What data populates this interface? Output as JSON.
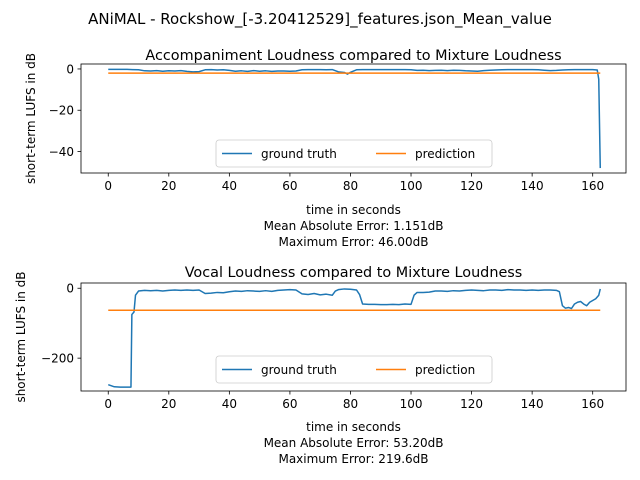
{
  "suptitle": "ANiMAL - Rockshow_[-3.20412529]_features.json_Mean_value",
  "colors": {
    "ground_truth": "#1f77b4",
    "prediction": "#ff7f0e"
  },
  "chart_data": [
    {
      "type": "line",
      "title": "Accompaniment Loudness compared to Mixture Loudness",
      "xlabel": "time in seconds",
      "ylabel": "short-term LUFS in dB",
      "xlim": [
        -9,
        171
      ],
      "ylim": [
        -50.4,
        2.4
      ],
      "xticks": [
        0,
        20,
        40,
        60,
        80,
        100,
        120,
        140,
        160
      ],
      "yticks": [
        0,
        -20,
        -40
      ],
      "metrics": [
        "Mean Absolute Error: 1.151dB",
        "Maximum Error: 46.00dB"
      ],
      "legend": {
        "position": "lower-center",
        "ncol": 2
      },
      "series": [
        {
          "name": "ground truth",
          "color": "#1f77b4",
          "points": [
            [
              0,
              -0.2
            ],
            [
              2,
              -0.2
            ],
            [
              4,
              -0.2
            ],
            [
              6,
              -0.2
            ],
            [
              8,
              -0.3
            ],
            [
              10,
              -0.4
            ],
            [
              12,
              -0.9
            ],
            [
              14,
              -1.0
            ],
            [
              16,
              -0.8
            ],
            [
              18,
              -1.1
            ],
            [
              20,
              -0.9
            ],
            [
              22,
              -1.0
            ],
            [
              24,
              -0.8
            ],
            [
              26,
              -1.2
            ],
            [
              28,
              -1.4
            ],
            [
              30,
              -1.3
            ],
            [
              32,
              -0.4
            ],
            [
              34,
              -0.3
            ],
            [
              36,
              -0.5
            ],
            [
              38,
              -0.4
            ],
            [
              40,
              -0.7
            ],
            [
              42,
              -1.1
            ],
            [
              44,
              -0.9
            ],
            [
              46,
              -1.2
            ],
            [
              48,
              -0.8
            ],
            [
              50,
              -1.1
            ],
            [
              52,
              -0.9
            ],
            [
              54,
              -1.2
            ],
            [
              56,
              -1.0
            ],
            [
              58,
              -1.0
            ],
            [
              60,
              -1.1
            ],
            [
              62,
              -1.0
            ],
            [
              64,
              -0.4
            ],
            [
              66,
              -0.3
            ],
            [
              68,
              -0.3
            ],
            [
              70,
              -0.3
            ],
            [
              72,
              -0.4
            ],
            [
              74,
              -0.3
            ],
            [
              76,
              -1.4
            ],
            [
              78,
              -1.7
            ],
            [
              79,
              -2.5
            ],
            [
              80,
              -1.6
            ],
            [
              82,
              -0.4
            ],
            [
              84,
              -0.3
            ],
            [
              86,
              -0.3
            ],
            [
              88,
              -0.3
            ],
            [
              90,
              -0.3
            ],
            [
              92,
              -0.3
            ],
            [
              94,
              -0.3
            ],
            [
              96,
              -0.3
            ],
            [
              98,
              -0.3
            ],
            [
              100,
              -0.4
            ],
            [
              102,
              -0.7
            ],
            [
              104,
              -0.6
            ],
            [
              106,
              -0.8
            ],
            [
              108,
              -0.7
            ],
            [
              110,
              -0.6
            ],
            [
              112,
              -0.8
            ],
            [
              114,
              -0.6
            ],
            [
              116,
              -0.7
            ],
            [
              118,
              -0.9
            ],
            [
              120,
              -1.0
            ],
            [
              122,
              -1.1
            ],
            [
              124,
              -0.8
            ],
            [
              126,
              -0.6
            ],
            [
              128,
              -0.5
            ],
            [
              130,
              -0.4
            ],
            [
              132,
              -0.3
            ],
            [
              134,
              -0.3
            ],
            [
              136,
              -0.3
            ],
            [
              138,
              -0.3
            ],
            [
              140,
              -0.3
            ],
            [
              142,
              -0.4
            ],
            [
              144,
              -0.6
            ],
            [
              146,
              -0.8
            ],
            [
              148,
              -0.7
            ],
            [
              150,
              -0.5
            ],
            [
              152,
              -0.4
            ],
            [
              154,
              -0.3
            ],
            [
              156,
              -0.3
            ],
            [
              158,
              -0.3
            ],
            [
              160,
              -0.3
            ],
            [
              161.5,
              -0.5
            ],
            [
              162,
              -5.0
            ],
            [
              162.5,
              -48.0
            ]
          ]
        },
        {
          "name": "prediction",
          "color": "#ff7f0e",
          "points": [
            [
              0,
              -2.0
            ],
            [
              162.5,
              -2.0
            ]
          ]
        }
      ]
    },
    {
      "type": "line",
      "title": "Vocal Loudness compared to Mixture Loudness",
      "xlabel": "time in seconds",
      "ylabel": "short-term LUFS in dB",
      "xlim": [
        -9,
        171
      ],
      "ylim": [
        -294,
        15
      ],
      "xticks": [
        0,
        20,
        40,
        60,
        80,
        100,
        120,
        140,
        160
      ],
      "yticks": [
        0,
        -200
      ],
      "metrics": [
        "Mean Absolute Error: 53.20dB",
        "Maximum Error: 219.6dB"
      ],
      "legend": {
        "position": "lower-center",
        "ncol": 2
      },
      "series": [
        {
          "name": "ground truth",
          "color": "#1f77b4",
          "points": [
            [
              0,
              -276
            ],
            [
              2,
              -282
            ],
            [
              4,
              -283
            ],
            [
              6,
              -283
            ],
            [
              7.5,
              -283
            ],
            [
              7.8,
              -75
            ],
            [
              8.5,
              -68
            ],
            [
              9,
              -20
            ],
            [
              10,
              -8
            ],
            [
              12,
              -6
            ],
            [
              14,
              -7
            ],
            [
              16,
              -6
            ],
            [
              18,
              -8
            ],
            [
              20,
              -6
            ],
            [
              22,
              -5
            ],
            [
              24,
              -6
            ],
            [
              26,
              -5
            ],
            [
              28,
              -6
            ],
            [
              30,
              -5
            ],
            [
              32,
              -15
            ],
            [
              34,
              -14
            ],
            [
              36,
              -12
            ],
            [
              38,
              -13
            ],
            [
              40,
              -10
            ],
            [
              42,
              -8
            ],
            [
              44,
              -9
            ],
            [
              46,
              -7
            ],
            [
              48,
              -8
            ],
            [
              50,
              -9
            ],
            [
              52,
              -7
            ],
            [
              54,
              -9
            ],
            [
              56,
              -6
            ],
            [
              58,
              -5
            ],
            [
              60,
              -4
            ],
            [
              62,
              -5
            ],
            [
              64,
              -16
            ],
            [
              66,
              -18
            ],
            [
              68,
              -15
            ],
            [
              70,
              -19
            ],
            [
              72,
              -17
            ],
            [
              74,
              -20
            ],
            [
              75,
              -8
            ],
            [
              76,
              -4
            ],
            [
              78,
              -2
            ],
            [
              80,
              -3
            ],
            [
              82,
              -5
            ],
            [
              83,
              -18
            ],
            [
              84,
              -45
            ],
            [
              86,
              -46
            ],
            [
              88,
              -46
            ],
            [
              90,
              -47
            ],
            [
              92,
              -47
            ],
            [
              94,
              -46
            ],
            [
              96,
              -47
            ],
            [
              98,
              -45
            ],
            [
              100,
              -46
            ],
            [
              101,
              -20
            ],
            [
              102,
              -12
            ],
            [
              104,
              -12
            ],
            [
              106,
              -11
            ],
            [
              108,
              -8
            ],
            [
              110,
              -8
            ],
            [
              112,
              -9
            ],
            [
              114,
              -7
            ],
            [
              116,
              -8
            ],
            [
              118,
              -6
            ],
            [
              120,
              -5
            ],
            [
              122,
              -6
            ],
            [
              124,
              -7
            ],
            [
              126,
              -5
            ],
            [
              128,
              -5
            ],
            [
              130,
              -6
            ],
            [
              132,
              -4
            ],
            [
              134,
              -5
            ],
            [
              136,
              -5
            ],
            [
              138,
              -6
            ],
            [
              140,
              -5
            ],
            [
              142,
              -6
            ],
            [
              144,
              -5
            ],
            [
              146,
              -5
            ],
            [
              148,
              -6
            ],
            [
              149,
              -10
            ],
            [
              150,
              -50
            ],
            [
              151,
              -57
            ],
            [
              152,
              -55
            ],
            [
              153,
              -58
            ],
            [
              154,
              -45
            ],
            [
              155,
              -40
            ],
            [
              156,
              -38
            ],
            [
              157,
              -45
            ],
            [
              158,
              -50
            ],
            [
              159,
              -40
            ],
            [
              160,
              -35
            ],
            [
              161,
              -30
            ],
            [
              162,
              -20
            ],
            [
              162.5,
              -2
            ]
          ]
        },
        {
          "name": "prediction",
          "color": "#ff7f0e",
          "points": [
            [
              0,
              -63
            ],
            [
              162.5,
              -63
            ]
          ]
        }
      ]
    }
  ]
}
